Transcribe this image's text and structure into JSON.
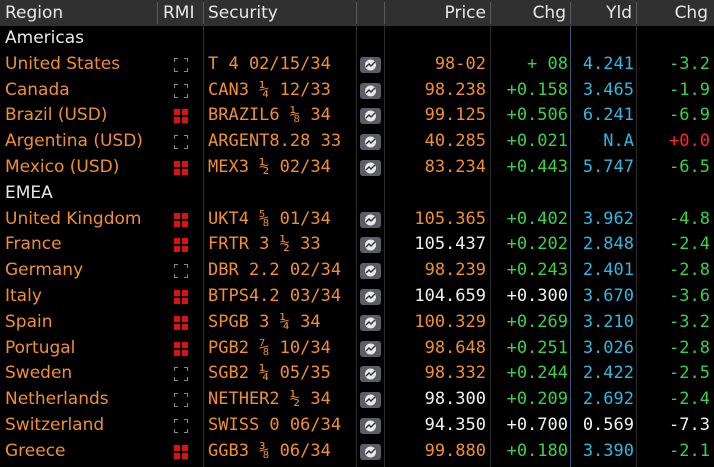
{
  "header": {
    "region": "Region",
    "rmi": "RMI",
    "security": "Security",
    "price": "Price",
    "chg": "Chg",
    "yld": "Yld",
    "chg2": "Chg"
  },
  "colors": {
    "orange": "#f0902e",
    "white": "#f2f2f2",
    "green": "#39d24a",
    "cyan": "#30b8e0",
    "red": "#ff2a2a",
    "header_bg": "#303030"
  },
  "rows": [
    {
      "type": "group",
      "label": "Americas"
    },
    {
      "type": "data",
      "region": "United States",
      "rmi": "off",
      "security": "T 4 02/15/34",
      "price": "98-02",
      "price_color": "orange",
      "chg": "+ 08",
      "chg_color": "green",
      "yld": "4.241",
      "yld_color": "cyan",
      "chg2": "-3.2",
      "chg2_color": "green"
    },
    {
      "type": "data",
      "region": "Canada",
      "rmi": "off",
      "security": "CAN3 ¼ 12/33",
      "price": "98.238",
      "price_color": "orange",
      "chg": "+0.158",
      "chg_color": "green",
      "yld": "3.465",
      "yld_color": "cyan",
      "chg2": "-1.9",
      "chg2_color": "green"
    },
    {
      "type": "data",
      "region": "Brazil (USD)",
      "rmi": "on",
      "security": "BRAZIL6 ⅛ 34",
      "price": "99.125",
      "price_color": "orange",
      "chg": "+0.506",
      "chg_color": "green",
      "yld": "6.241",
      "yld_color": "cyan",
      "chg2": "-6.9",
      "chg2_color": "green"
    },
    {
      "type": "data",
      "region": "Argentina (USD)",
      "rmi": "off",
      "security": "ARGENT8.28 33",
      "price": "40.285",
      "price_color": "orange",
      "chg": "+0.021",
      "chg_color": "green",
      "yld": "N.A",
      "yld_color": "cyan",
      "chg2": "+0.0",
      "chg2_color": "red"
    },
    {
      "type": "data",
      "region": "Mexico (USD)",
      "rmi": "on",
      "security": "MEX3 ½ 02/34",
      "price": "83.234",
      "price_color": "orange",
      "chg": "+0.443",
      "chg_color": "green",
      "yld": "5.747",
      "yld_color": "cyan",
      "chg2": "-6.5",
      "chg2_color": "green"
    },
    {
      "type": "group",
      "label": "EMEA"
    },
    {
      "type": "data",
      "region": "United Kingdom",
      "rmi": "on",
      "security": "UKT4 ⅝ 01/34",
      "price": "105.365",
      "price_color": "orange",
      "chg": "+0.402",
      "chg_color": "green",
      "yld": "3.962",
      "yld_color": "cyan",
      "chg2": "-4.8",
      "chg2_color": "green"
    },
    {
      "type": "data",
      "region": "France",
      "rmi": "on",
      "security": "FRTR 3 ½ 33",
      "price": "105.437",
      "price_color": "white",
      "chg": "+0.202",
      "chg_color": "green",
      "yld": "2.848",
      "yld_color": "cyan",
      "chg2": "-2.4",
      "chg2_color": "green"
    },
    {
      "type": "data",
      "region": "Germany",
      "rmi": "off",
      "security": "DBR 2.2 02/34",
      "price": "98.239",
      "price_color": "orange",
      "chg": "+0.243",
      "chg_color": "green",
      "yld": "2.401",
      "yld_color": "cyan",
      "chg2": "-2.8",
      "chg2_color": "green"
    },
    {
      "type": "data",
      "region": "Italy",
      "rmi": "on",
      "security": "BTPS4.2 03/34",
      "price": "104.659",
      "price_color": "white",
      "chg": "+0.300",
      "chg_color": "white",
      "yld": "3.670",
      "yld_color": "cyan",
      "chg2": "-3.6",
      "chg2_color": "green"
    },
    {
      "type": "data",
      "region": "Spain",
      "rmi": "on",
      "security": "SPGB 3 ¼ 34",
      "price": "100.329",
      "price_color": "orange",
      "chg": "+0.269",
      "chg_color": "green",
      "yld": "3.210",
      "yld_color": "cyan",
      "chg2": "-3.2",
      "chg2_color": "green"
    },
    {
      "type": "data",
      "region": "Portugal",
      "rmi": "on",
      "security": "PGB2 ⅞ 10/34",
      "price": "98.648",
      "price_color": "orange",
      "chg": "+0.251",
      "chg_color": "green",
      "yld": "3.026",
      "yld_color": "cyan",
      "chg2": "-2.8",
      "chg2_color": "green"
    },
    {
      "type": "data",
      "region": "Sweden",
      "rmi": "off",
      "security": "SGB2 ¼ 05/35",
      "price": "98.332",
      "price_color": "orange",
      "chg": "+0.244",
      "chg_color": "green",
      "yld": "2.422",
      "yld_color": "cyan",
      "chg2": "-2.5",
      "chg2_color": "green"
    },
    {
      "type": "data",
      "region": "Netherlands",
      "rmi": "off",
      "security": "NETHER2 ½ 34",
      "price": "98.300",
      "price_color": "white",
      "chg": "+0.209",
      "chg_color": "green",
      "yld": "2.692",
      "yld_color": "cyan",
      "chg2": "-2.4",
      "chg2_color": "green"
    },
    {
      "type": "data",
      "region": "Switzerland",
      "rmi": "off",
      "security": "SWISS 0 06/34",
      "price": "94.350",
      "price_color": "white",
      "chg": "+0.700",
      "chg_color": "white",
      "yld": "0.569",
      "yld_color": "white",
      "chg2": "-7.3",
      "chg2_color": "white"
    },
    {
      "type": "data",
      "region": "Greece",
      "rmi": "on",
      "security": "GGB3 ⅜ 06/34",
      "price": "99.880",
      "price_color": "orange",
      "chg": "+0.180",
      "chg_color": "green",
      "yld": "3.390",
      "yld_color": "cyan",
      "chg2": "-2.1",
      "chg2_color": "green"
    }
  ]
}
